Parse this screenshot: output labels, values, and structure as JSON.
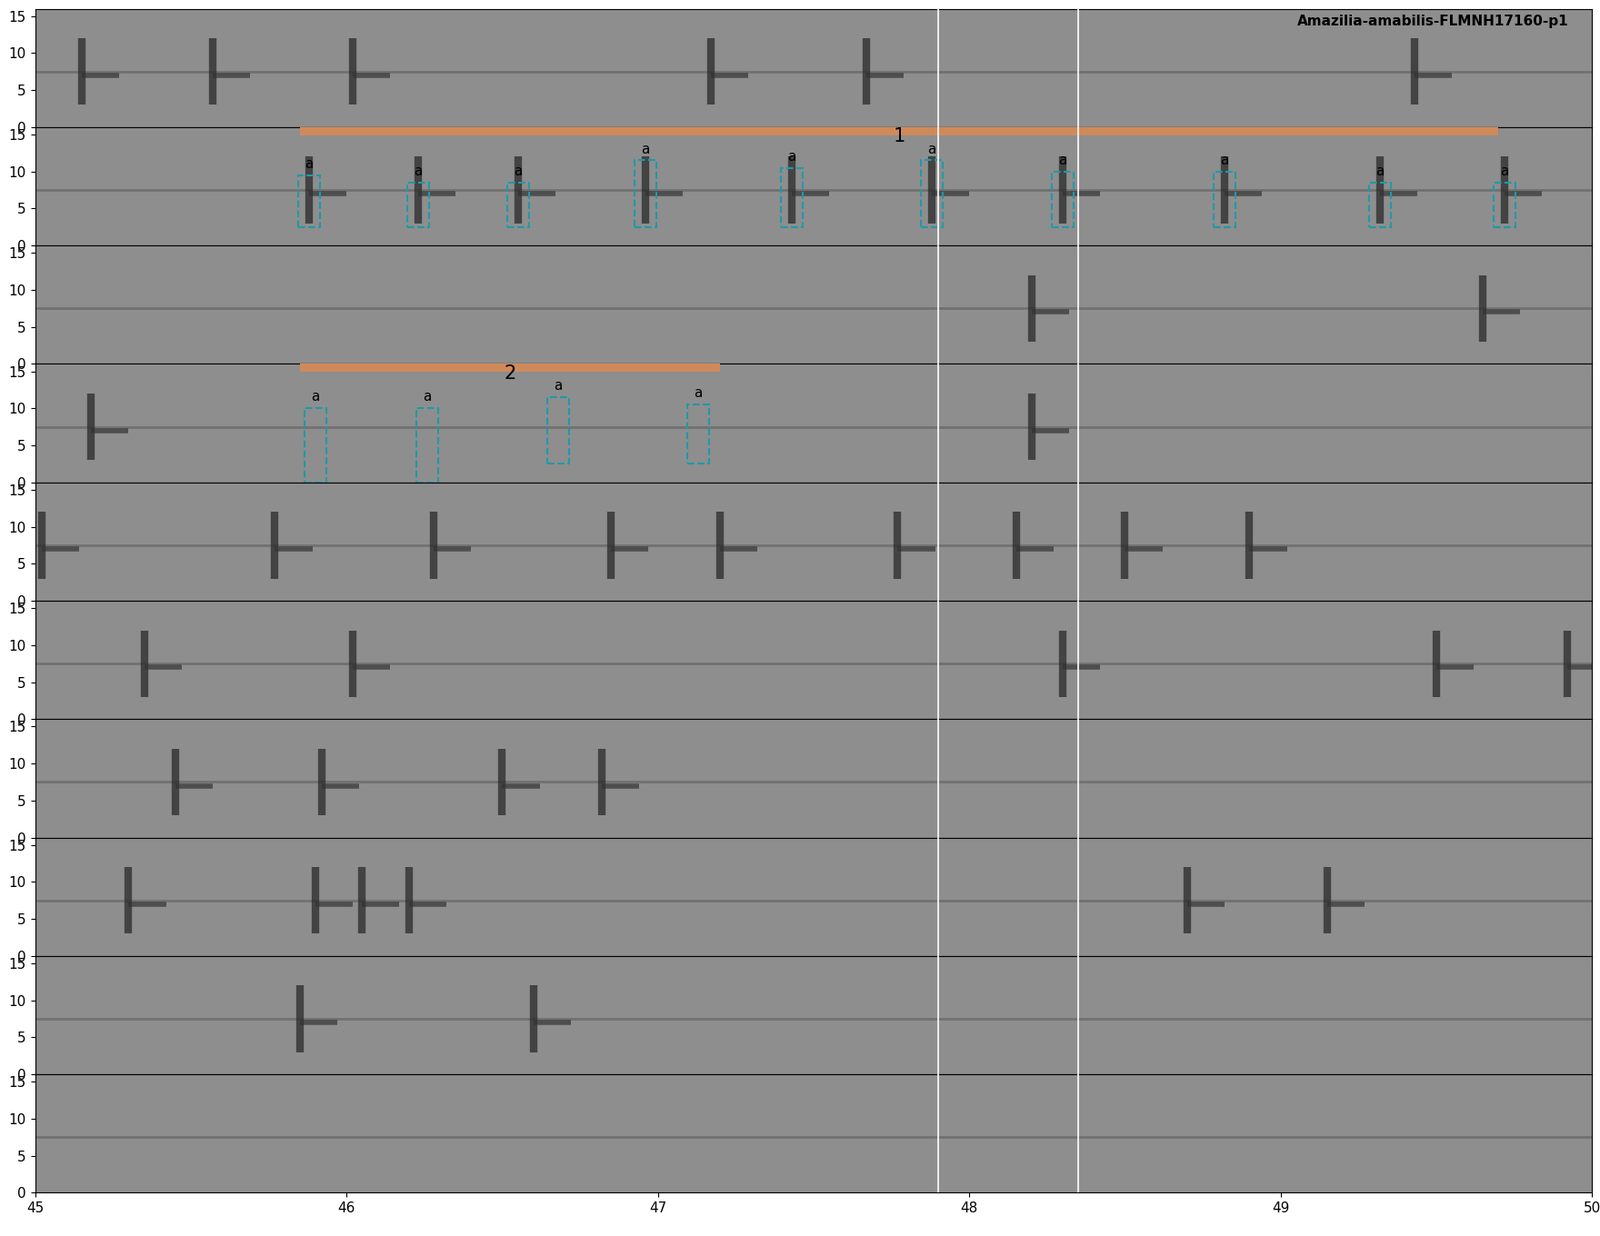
{
  "chart_data": {
    "type": "spectrogram",
    "title": "Amazilia-amabilis-FLMNH17160-p1",
    "xlim": [
      45,
      50
    ],
    "xticks": [
      45,
      46,
      47,
      48,
      49,
      50
    ],
    "ylim": [
      0,
      16
    ],
    "yticks": [
      0,
      5,
      10,
      15
    ],
    "vertical_lines": [
      47.9,
      48.35
    ],
    "panels": [
      {
        "notes": [
          45.15,
          45.57,
          46.02,
          47.17,
          47.67,
          49.43
        ]
      },
      {
        "notes": [
          45.88,
          46.23,
          46.55,
          46.96,
          47.43,
          47.88,
          48.3,
          48.82,
          49.32,
          49.72
        ],
        "selection": {
          "label": "1",
          "start": 45.85,
          "end": 49.7
        },
        "boxes": [
          {
            "x": 45.88,
            "low": 2.5,
            "high": 9.5,
            "label": "a"
          },
          {
            "x": 46.23,
            "low": 2.5,
            "high": 8.5,
            "label": "a"
          },
          {
            "x": 46.55,
            "low": 2.5,
            "high": 8.5,
            "label": "a"
          },
          {
            "x": 46.96,
            "low": 2.5,
            "high": 11.5,
            "label": "a"
          },
          {
            "x": 47.43,
            "low": 2.5,
            "high": 10.5,
            "label": "a"
          },
          {
            "x": 47.88,
            "low": 2.5,
            "high": 11.5,
            "label": "a"
          },
          {
            "x": 48.3,
            "low": 2.5,
            "high": 10.0,
            "label": "a"
          },
          {
            "x": 48.82,
            "low": 2.5,
            "high": 10.0,
            "label": "a"
          },
          {
            "x": 49.32,
            "low": 2.5,
            "high": 8.5,
            "label": "a"
          },
          {
            "x": 49.72,
            "low": 2.5,
            "high": 8.5,
            "label": "a"
          }
        ]
      },
      {
        "notes": [
          48.2,
          49.65
        ]
      },
      {
        "notes": [
          45.18,
          48.2
        ],
        "selection": {
          "label": "2",
          "start": 45.85,
          "end": 47.2
        },
        "boxes": [
          {
            "x": 45.9,
            "low": 0,
            "high": 10.0,
            "label": "a"
          },
          {
            "x": 46.26,
            "low": 0,
            "high": 10.0,
            "label": "a"
          },
          {
            "x": 46.68,
            "low": 2.5,
            "high": 11.5,
            "label": "a"
          },
          {
            "x": 47.13,
            "low": 2.5,
            "high": 10.5,
            "label": "a"
          }
        ]
      },
      {
        "notes": [
          45.02,
          45.77,
          46.28,
          46.85,
          47.2,
          47.77,
          48.15,
          48.5,
          48.9
        ]
      },
      {
        "notes": [
          45.35,
          46.02,
          48.3,
          49.5,
          49.92
        ]
      },
      {
        "notes": [
          45.45,
          45.92,
          46.5,
          46.82
        ]
      },
      {
        "notes": [
          45.3,
          45.9,
          46.05,
          46.2,
          48.7,
          49.15
        ]
      },
      {
        "notes": [
          45.85,
          46.6
        ]
      },
      {
        "notes": []
      }
    ]
  }
}
